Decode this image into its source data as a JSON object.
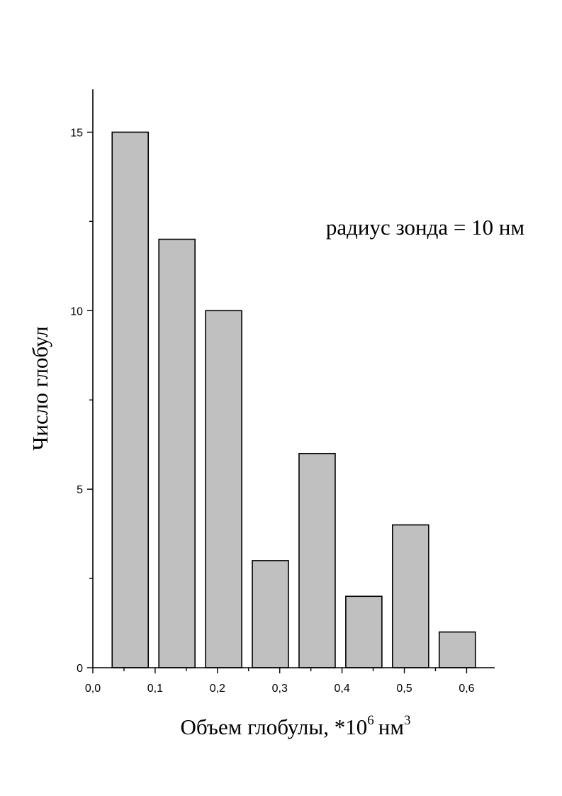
{
  "chart_data": {
    "type": "bar",
    "x": [
      0.06,
      0.135,
      0.21,
      0.285,
      0.36,
      0.435,
      0.51,
      0.585
    ],
    "values": [
      15,
      12,
      10,
      3,
      6,
      2,
      4,
      1
    ],
    "bar_width": 0.058,
    "xlim": [
      0.0,
      0.645
    ],
    "ylim": [
      0,
      16.2
    ],
    "x_ticks": [
      0.0,
      0.1,
      0.2,
      0.3,
      0.4,
      0.5,
      0.6
    ],
    "x_tick_labels": [
      "0,0",
      "0,1",
      "0,2",
      "0,3",
      "0,4",
      "0,5",
      "0,6"
    ],
    "x_minor_ticks": [
      0.05,
      0.15,
      0.25,
      0.35,
      0.45,
      0.55
    ],
    "y_ticks": [
      0,
      5,
      10,
      15
    ],
    "y_tick_labels": [
      "0",
      "5",
      "10",
      "15"
    ],
    "y_minor_ticks": [
      2.5,
      7.5,
      12.5
    ],
    "xlabel": "Объем глобулы, *10",
    "xlabel_exponent": "6",
    "xlabel_unit": "нм",
    "xlabel_unit_exponent": "3",
    "ylabel": "Число глобул",
    "annotation": "радиус зонда = 10 нм",
    "bar_color": "#c0c0c0",
    "grid": false,
    "legend": false
  }
}
